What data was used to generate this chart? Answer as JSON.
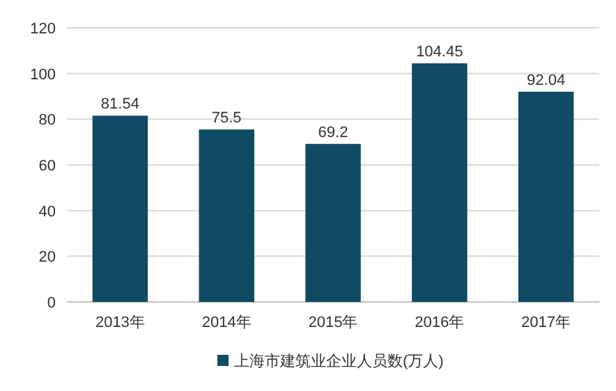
{
  "chart_data": {
    "type": "bar",
    "categories": [
      "2013年",
      "2014年",
      "2015年",
      "2016年",
      "2017年"
    ],
    "series": [
      {
        "name": "上海市建筑业企业人员数(万人)",
        "color": "#0f4c63",
        "values": [
          81.54,
          75.5,
          69.2,
          104.45,
          92.04
        ]
      }
    ],
    "ylim": [
      0,
      120
    ],
    "yticks": [
      0,
      20,
      40,
      60,
      80,
      100,
      120
    ],
    "grid": "y",
    "legend": "bottom",
    "data_labels": true
  }
}
